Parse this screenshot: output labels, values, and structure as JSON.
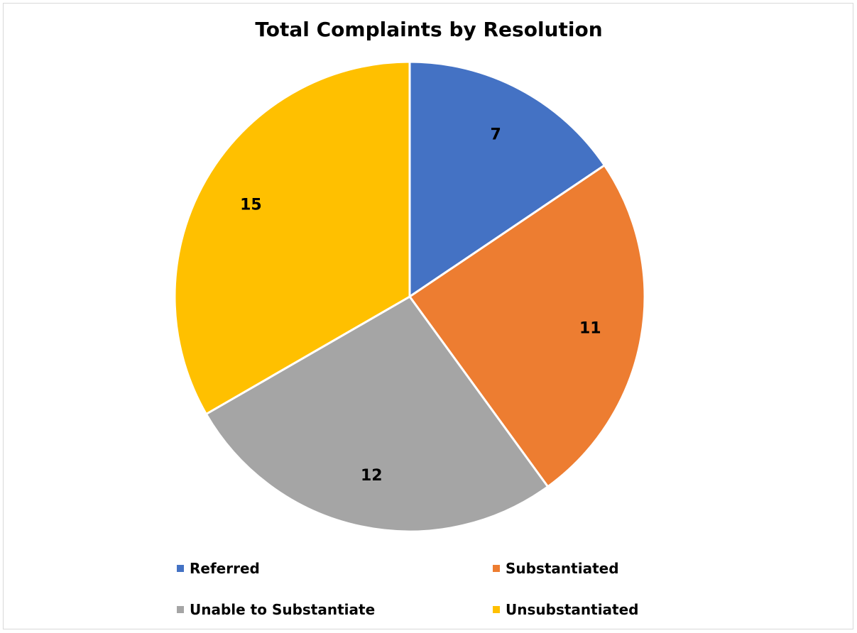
{
  "chart_data": {
    "type": "pie",
    "title": "Total Complaints by Resolution",
    "categories": [
      "Referred",
      "Substantiated",
      "Unable to Substantiate",
      "Unsubstantiated"
    ],
    "values": [
      7,
      11,
      12,
      15
    ],
    "colors": [
      "#4472C4",
      "#ED7D31",
      "#A5A5A5",
      "#FFC000"
    ],
    "data_labels": [
      "7",
      "11",
      "12",
      "15"
    ],
    "start_angle_deg": 0,
    "direction": "clockwise",
    "legend_position": "bottom"
  }
}
